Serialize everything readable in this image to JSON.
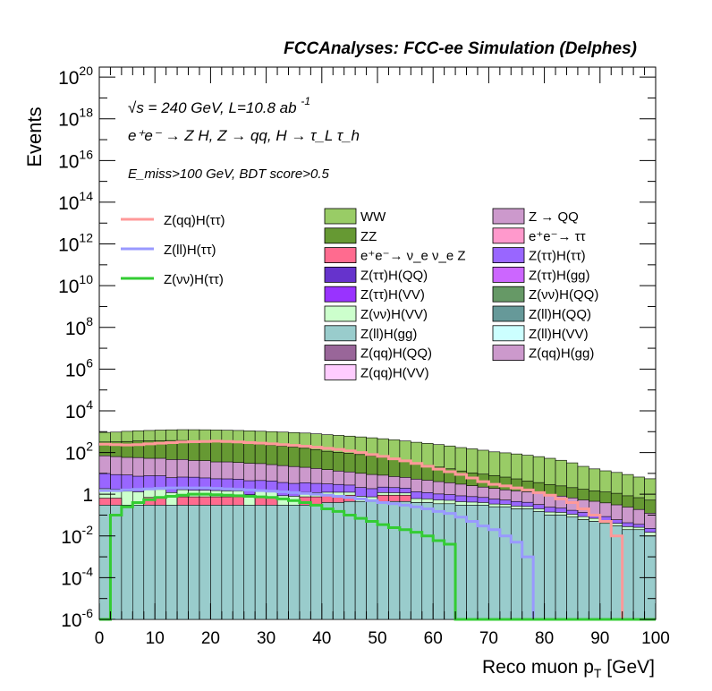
{
  "header": {
    "title": "FCCAnalyses: FCC-ee Simulation (Delphes)",
    "energy_line": "√s = 240 GeV, L=10.8 ab",
    "lumi_exp": "-1",
    "process_line": "e⁺e⁻ → Z H, Z → qq, H → τ_L τ_h",
    "cuts_line": "E_miss>100 GeV, BDT score>0.5"
  },
  "colors": {
    "WW": "#99cc66",
    "ZZ": "#669933",
    "nunuZ": "#ff6b8f",
    "ZttHQQ": "#6633cc",
    "ZttHVV": "#9933ff",
    "ZnnHVV": "#ccffcc",
    "ZllHgg": "#99cccc",
    "ZqqHQQ": "#996699",
    "ZqqHVV": "#ffccff",
    "ZQQ": "#cc99cc",
    "tautau": "#ff99cc",
    "ZttHtt": "#9966ff",
    "ZttHgg": "#cc66ff",
    "ZnnHQQ": "#669966",
    "ZllHQQ": "#669999",
    "ZllHVV": "#ccffff",
    "ZqqHgg": "#cc99cc",
    "sig_qq": "#ff9999",
    "sig_ll": "#9999ff",
    "sig_nn": "#33cc33"
  },
  "chart_data": {
    "type": "area",
    "xlabel": "Reco muon p",
    "xlabel_sub": "T",
    "xlabel_unit": " [GeV]",
    "ylabel": "Events",
    "xlim": [
      0,
      100
    ],
    "ylim": [
      1e-06,
      3e+20
    ],
    "log_y": true,
    "bin_width": 2,
    "x_ticks": [
      "0",
      "10",
      "20",
      "30",
      "40",
      "50",
      "60",
      "70",
      "80",
      "90",
      "100"
    ],
    "y_ticks": [
      {
        "base": "10",
        "exp": "-6"
      },
      {
        "base": "10",
        "exp": "-4"
      },
      {
        "base": "10",
        "exp": "-2"
      },
      {
        "base": "1",
        "exp": ""
      },
      {
        "base": "10",
        "exp": "2"
      },
      {
        "base": "10",
        "exp": "4"
      },
      {
        "base": "10",
        "exp": "6"
      },
      {
        "base": "10",
        "exp": "8"
      },
      {
        "base": "10",
        "exp": "10"
      },
      {
        "base": "10",
        "exp": "12"
      },
      {
        "base": "10",
        "exp": "14"
      },
      {
        "base": "10",
        "exp": "16"
      },
      {
        "base": "10",
        "exp": "18"
      },
      {
        "base": "10",
        "exp": "20"
      }
    ],
    "stack_top": {
      "name": "WW",
      "values": [
        600,
        630,
        700,
        750,
        780,
        820,
        850,
        870,
        880,
        880,
        870,
        860,
        850,
        830,
        800,
        780,
        750,
        720,
        700,
        650,
        600,
        560,
        520,
        480,
        440,
        400,
        360,
        320,
        280,
        250,
        220,
        190,
        160,
        140,
        120,
        100,
        90,
        80,
        70,
        60,
        50,
        40,
        30,
        20,
        15,
        12,
        10,
        8,
        6,
        5
      ]
    },
    "stack_zz": {
      "name": "ZZ",
      "values": [
        250,
        260,
        280,
        300,
        310,
        320,
        330,
        330,
        320,
        310,
        300,
        280,
        260,
        240,
        220,
        200,
        180,
        160,
        140,
        120,
        100,
        90,
        80,
        70,
        60,
        50,
        40,
        32,
        25,
        20,
        16,
        13,
        10,
        8,
        7,
        6,
        5,
        4,
        3,
        2.5,
        2,
        1.7,
        1.4,
        1.2,
        1,
        0.9,
        0.8,
        0.6,
        0.5,
        0.4
      ]
    },
    "stack_upper": {
      "name": "Z(qq)H(gg)",
      "values": [
        60,
        55,
        50,
        50,
        45,
        45,
        40,
        40,
        35,
        35,
        30,
        30,
        28,
        26,
        25,
        22,
        20,
        18,
        16,
        14,
        12,
        10,
        9,
        8,
        7,
        6,
        5,
        4.5,
        4,
        3.5,
        3,
        2.6,
        2.2,
        1.8,
        1.5,
        1.3,
        1.1,
        1,
        0.9,
        0.8,
        0.7,
        0.6,
        0.5,
        0.4,
        0.35,
        0.3,
        0.25,
        0.2,
        0.15,
        0.1
      ]
    },
    "stack_mid": {
      "name": "Z(ττ)H(ττ)",
      "values": [
        8,
        7,
        7,
        6,
        6,
        6,
        5,
        5,
        5,
        4.5,
        4,
        4,
        3.8,
        3.5,
        3.2,
        3,
        2.8,
        2.5,
        2.3,
        2.1,
        1.9,
        1.7,
        1.5,
        1.3,
        1.1,
        1,
        0.9,
        0.8,
        0.7,
        0.6,
        0.5,
        0.45,
        0.4,
        0.35,
        0.3,
        0.25,
        0.2,
        0.18,
        0.15,
        0.12,
        0.1,
        0.08,
        0.06,
        0.05,
        0.04,
        0.03,
        0.02,
        0.015,
        0.01,
        0.008
      ]
    },
    "stack_lowmid": {
      "name": "Z(νν)H(VV)",
      "values": [
        1.2,
        1.1,
        1.1,
        1,
        1,
        1,
        0.9,
        0.9,
        0.8,
        0.8,
        0.75,
        0.7,
        0.7,
        0.65,
        0.6,
        0.6,
        0.55,
        0.5,
        0.5,
        0.45,
        0.4,
        0.4,
        0.35,
        0.35,
        0.3,
        0.3,
        0.28,
        0.25,
        0.22,
        0.2,
        0.18,
        0.16,
        0.14,
        0.12,
        0.1,
        0.09,
        0.08,
        0.07,
        0.06,
        0.05,
        0.04,
        0.035,
        0.03,
        0.025,
        0.02,
        0.015,
        0.01,
        0.008,
        0.006,
        0.005
      ]
    },
    "stack_nunuZ": {
      "name": "e⁺e⁻→ ν_e ν_e Z",
      "values": [
        0.35,
        0.35,
        0.0,
        0.0,
        0.4,
        0.4,
        0.0,
        0.45,
        0.45,
        0.45,
        0.45,
        0.45,
        0.45,
        0.0,
        0.45,
        0.45,
        0.0,
        0.0,
        0.45,
        0.45,
        0.45,
        0.45,
        0.45,
        0.0,
        0.0,
        0.45,
        0.45,
        0.45,
        0.0,
        0.0,
        0.0,
        0.0,
        0.0,
        0.0,
        0.0,
        0.0,
        0.0,
        0.0,
        0.0,
        0.0,
        0.0,
        0.0,
        0.0,
        0.0,
        0.0,
        0.0,
        0.0,
        0.0,
        0.0,
        0.0
      ]
    },
    "stack_bottom": {
      "name": "Z(ll)H(gg)",
      "values": [
        0.3,
        0.3,
        0.3,
        0.3,
        0.3,
        0.3,
        0.3,
        0.3,
        0.3,
        0.3,
        0.3,
        0.3,
        0.3,
        0.3,
        0.3,
        0.3,
        0.3,
        0.3,
        0.3,
        0.3,
        0.4,
        0.4,
        0.45,
        0.45,
        0.45,
        0.45,
        0.45,
        0.45,
        0.4,
        0.4,
        0.35,
        0.35,
        0.3,
        0.3,
        0.3,
        0.25,
        0.25,
        0.2,
        0.2,
        0.15,
        0.1,
        0.1,
        0.08,
        0.06,
        0.05,
        0.04,
        0.03,
        0.02,
        0.02,
        0.01
      ]
    },
    "series": [
      {
        "name": "Z(qq)H(ττ)",
        "values": [
          250,
          240,
          230,
          240,
          260,
          280,
          300,
          320,
          330,
          340,
          350,
          340,
          320,
          300,
          280,
          260,
          240,
          220,
          200,
          180,
          160,
          140,
          120,
          100,
          80,
          65,
          50,
          40,
          30,
          22,
          16,
          12,
          9,
          6,
          4,
          3,
          2.5,
          2,
          1.6,
          1.2,
          0.9,
          0.6,
          0.4,
          0.2,
          0.1,
          0.05,
          0.01,
          1e-06,
          1e-06,
          1e-06
        ]
      },
      {
        "name": "Z(ll)H(ττ)",
        "values": [
          1.5,
          1.5,
          1.6,
          1.7,
          1.8,
          1.9,
          2.0,
          2.0,
          2.0,
          2.0,
          1.9,
          1.8,
          1.7,
          1.6,
          1.5,
          1.4,
          1.3,
          1.2,
          1.1,
          1.0,
          0.9,
          0.8,
          0.7,
          0.6,
          0.5,
          0.4,
          0.35,
          0.3,
          0.25,
          0.2,
          0.15,
          0.12,
          0.08,
          0.05,
          0.03,
          0.02,
          0.01,
          0.005,
          0.001,
          1e-06,
          1e-06,
          1e-06,
          1e-06,
          1e-06,
          1e-06,
          1e-06,
          1e-06,
          1e-06,
          1e-06,
          1e-06
        ]
      },
      {
        "name": "Z(νν)H(ττ)",
        "values": [
          1e-06,
          0.1,
          0.25,
          0.4,
          0.55,
          0.7,
          0.8,
          0.9,
          1.0,
          1.0,
          0.95,
          0.9,
          0.85,
          0.8,
          0.75,
          0.7,
          0.6,
          0.5,
          0.4,
          0.3,
          0.2,
          0.15,
          0.1,
          0.07,
          0.05,
          0.035,
          0.025,
          0.02,
          0.015,
          0.01,
          0.006,
          0.004,
          1e-06,
          1e-06,
          1e-06,
          1e-06,
          1e-06,
          1e-06,
          1e-06,
          1e-06,
          1e-06,
          1e-06,
          1e-06,
          1e-06,
          1e-06,
          1e-06,
          1e-06,
          1e-06,
          1e-06,
          1e-06
        ]
      }
    ],
    "legend_lines": [
      "Z(qq)H(ττ)",
      "Z(ll)H(ττ)",
      "Z(νν)H(ττ)"
    ],
    "legend_fills_col1": [
      "WW",
      "ZZ",
      "e⁺e⁻→ ν_e ν_e Z",
      "Z(ττ)H(QQ)",
      "Z(ττ)H(VV)",
      "Z(νν)H(VV)",
      "Z(ll)H(gg)",
      "Z(qq)H(QQ)",
      "Z(qq)H(VV)"
    ],
    "legend_fills_col2": [
      "Z → QQ",
      "e⁺e⁻→ ττ",
      "Z(ττ)H(ττ)",
      "Z(ττ)H(gg)",
      "Z(νν)H(QQ)",
      "Z(ll)H(QQ)",
      "Z(ll)H(VV)",
      "Z(qq)H(gg)"
    ]
  }
}
